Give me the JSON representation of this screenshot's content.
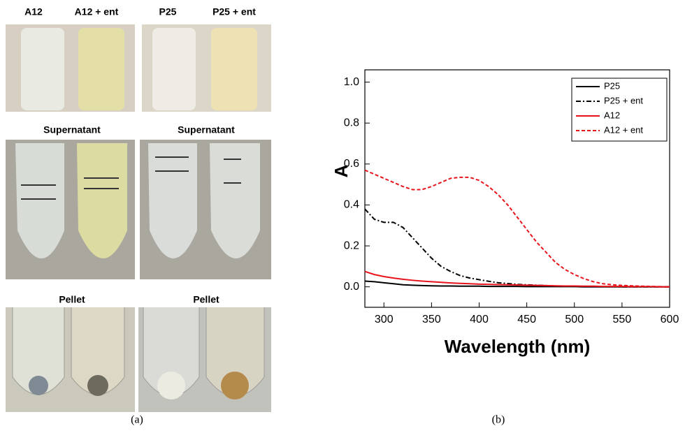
{
  "panel_a": {
    "tube_labels": [
      "A12",
      "A12 + ent",
      "P25",
      "P25 + ent"
    ],
    "row_labels": [
      "Supernatant",
      "Supernatant",
      "Pellet",
      "Pellet"
    ]
  },
  "captions": [
    "(a)",
    "(b)"
  ],
  "chart_data": {
    "type": "line",
    "x_label": "Wavelength (nm)",
    "y_label": "A",
    "x": [
      280,
      290,
      300,
      310,
      320,
      330,
      340,
      350,
      360,
      370,
      380,
      390,
      400,
      410,
      420,
      430,
      440,
      450,
      460,
      470,
      480,
      490,
      500,
      510,
      520,
      530,
      540,
      550,
      560,
      570,
      580,
      590,
      600
    ],
    "series": [
      {
        "name": "P25",
        "color": "#000000",
        "dash": "solid",
        "values": [
          0.028,
          0.025,
          0.02,
          0.015,
          0.01,
          0.008,
          0.006,
          0.005,
          0.004,
          0.004,
          0.003,
          0.003,
          0.003,
          0.002,
          0.002,
          0.002,
          0.002,
          0.001,
          0.001,
          0.001,
          0.001,
          0.001,
          0.001,
          0,
          0,
          0,
          0,
          0,
          0,
          0,
          0,
          0,
          0
        ]
      },
      {
        "name": "P25 + ent",
        "color": "#000000",
        "dash": "dashdot",
        "values": [
          0.38,
          0.33,
          0.315,
          0.315,
          0.29,
          0.24,
          0.19,
          0.14,
          0.1,
          0.075,
          0.055,
          0.043,
          0.035,
          0.027,
          0.02,
          0.016,
          0.012,
          0.01,
          0.008,
          0.006,
          0.004,
          0.003,
          0.002,
          0.002,
          0.001,
          0.001,
          0.001,
          0,
          0,
          0,
          0,
          0,
          0
        ]
      },
      {
        "name": "A12",
        "color": "#e8141c",
        "dash": "solid",
        "values": [
          0.075,
          0.06,
          0.05,
          0.043,
          0.037,
          0.032,
          0.028,
          0.025,
          0.022,
          0.019,
          0.017,
          0.015,
          0.013,
          0.012,
          0.011,
          0.01,
          0.009,
          0.008,
          0.007,
          0.006,
          0.005,
          0.004,
          0.004,
          0.003,
          0.003,
          0.002,
          0.002,
          0.002,
          0.001,
          0.001,
          0.001,
          0,
          0
        ]
      },
      {
        "name": "A12 + ent",
        "color": "#e8141c",
        "dash": "dash",
        "values": [
          0.57,
          0.55,
          0.53,
          0.51,
          0.49,
          0.475,
          0.475,
          0.49,
          0.51,
          0.53,
          0.535,
          0.535,
          0.52,
          0.49,
          0.45,
          0.4,
          0.34,
          0.28,
          0.22,
          0.17,
          0.12,
          0.085,
          0.06,
          0.04,
          0.025,
          0.015,
          0.01,
          0.007,
          0.005,
          0.003,
          0.002,
          0.001,
          0
        ]
      }
    ],
    "xlim": [
      280,
      600
    ],
    "xticks": [
      300,
      350,
      400,
      450,
      500,
      550,
      600
    ],
    "ylim": [
      -0.1,
      1.06
    ],
    "yticks": [
      {
        "value": 0,
        "label": "0.0"
      },
      {
        "value": 0.2,
        "label": "0.2"
      },
      {
        "value": 0.4,
        "label": "0.4"
      },
      {
        "value": 0.6,
        "label": "0.6"
      },
      {
        "value": 0.8,
        "label": "0.8"
      },
      {
        "value": 1.0,
        "label": "1.0"
      }
    ],
    "legend": "upper right"
  }
}
